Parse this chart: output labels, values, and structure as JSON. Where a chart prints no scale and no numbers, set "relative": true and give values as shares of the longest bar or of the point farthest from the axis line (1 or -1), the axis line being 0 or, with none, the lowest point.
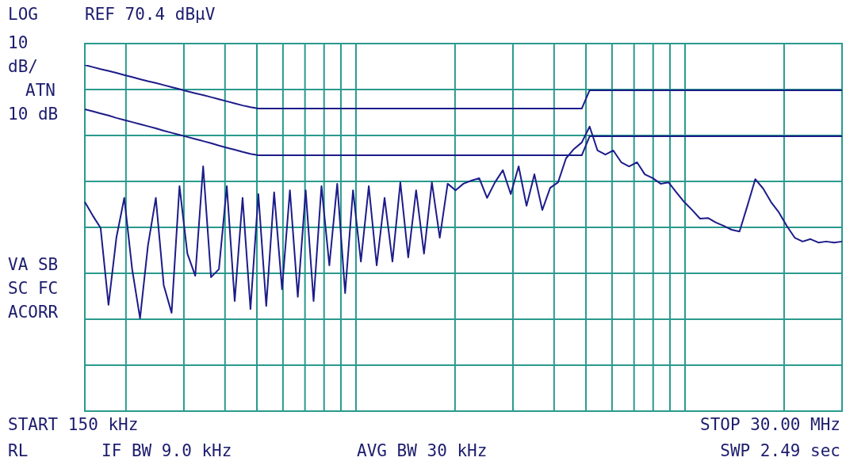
{
  "chart_data": {
    "type": "line",
    "relative": true,
    "grid": true,
    "legend": false,
    "categories": [
      null,
      null,
      null,
      null,
      null,
      null,
      null,
      null,
      null,
      null,
      null,
      null,
      null,
      null,
      null,
      null,
      null,
      null,
      null,
      null,
      null,
      null,
      null,
      null,
      null,
      null,
      null,
      null,
      null,
      null,
      null,
      null,
      null,
      null,
      null,
      null,
      null,
      null,
      null,
      null,
      null,
      null,
      null,
      null,
      null,
      null,
      null,
      null,
      null,
      null,
      null,
      null,
      null,
      null,
      null,
      null,
      null,
      null,
      null,
      null,
      null,
      null,
      null,
      null,
      null,
      null,
      null,
      null,
      null,
      null,
      null,
      null,
      null,
      null,
      null,
      null,
      null,
      null,
      null,
      null,
      null,
      null,
      null,
      null,
      null,
      null,
      null,
      null,
      null,
      null,
      null,
      null,
      null,
      null,
      null,
      null,
      null
    ],
    "annotations": [
      "LOG",
      "REF 70.4 dBµV",
      "10",
      "dB/",
      "ATN",
      "10 dB",
      "VA SB",
      "SC FC",
      "ACORR",
      "START 150 kHz",
      "STOP 30.00 MHz",
      "RL",
      "IF BW 9.0 kHz",
      "AVG BW 30 kHz",
      "SWP 2.49 sec"
    ],
    "series": [
      {
        "color": "#1c1c8a",
        "values": [
          1.0,
          0.994,
          0.988,
          0.983,
          0.977,
          0.971,
          0.965,
          0.959,
          0.953,
          0.948,
          0.942,
          0.936,
          0.93,
          0.924,
          0.918,
          0.913,
          0.907,
          0.901,
          0.895,
          0.889,
          0.883,
          0.878,
          0.874,
          0.874,
          0.874,
          0.874,
          0.874,
          0.874,
          0.874,
          0.874,
          0.874,
          0.874,
          0.874,
          0.874,
          0.874,
          0.874,
          0.874,
          0.874,
          0.874,
          0.874,
          0.874,
          0.874,
          0.874,
          0.874,
          0.874,
          0.874,
          0.874,
          0.874,
          0.874,
          0.874,
          0.874,
          0.874,
          0.874,
          0.874,
          0.874,
          0.874,
          0.874,
          0.874,
          0.874,
          0.874,
          0.874,
          0.874,
          0.874,
          0.874,
          0.927,
          0.927,
          0.927,
          0.927,
          0.927,
          0.927,
          0.927,
          0.927,
          0.927,
          0.927,
          0.927,
          0.927,
          0.927,
          0.927,
          0.927,
          0.927,
          0.927,
          0.927,
          0.927,
          0.927,
          0.927,
          0.927,
          0.927,
          0.927,
          0.927,
          0.927,
          0.927,
          0.927,
          0.927,
          0.927,
          0.927,
          0.927,
          0.927
        ]
      },
      {
        "color": "#1c1c8a",
        "values": [
          0.872,
          0.866,
          0.86,
          0.854,
          0.847,
          0.841,
          0.835,
          0.829,
          0.823,
          0.817,
          0.81,
          0.804,
          0.798,
          0.792,
          0.786,
          0.78,
          0.774,
          0.767,
          0.761,
          0.755,
          0.749,
          0.743,
          0.739,
          0.739,
          0.739,
          0.739,
          0.739,
          0.739,
          0.739,
          0.739,
          0.739,
          0.739,
          0.739,
          0.739,
          0.739,
          0.739,
          0.739,
          0.739,
          0.739,
          0.739,
          0.739,
          0.739,
          0.739,
          0.739,
          0.739,
          0.739,
          0.739,
          0.739,
          0.739,
          0.739,
          0.739,
          0.739,
          0.739,
          0.739,
          0.739,
          0.739,
          0.739,
          0.739,
          0.739,
          0.739,
          0.739,
          0.739,
          0.739,
          0.739,
          0.794,
          0.794,
          0.794,
          0.794,
          0.794,
          0.794,
          0.794,
          0.794,
          0.794,
          0.794,
          0.794,
          0.794,
          0.794,
          0.794,
          0.794,
          0.794,
          0.794,
          0.794,
          0.794,
          0.794,
          0.794,
          0.794,
          0.794,
          0.794,
          0.794,
          0.794,
          0.794,
          0.794,
          0.794,
          0.794,
          0.794,
          0.794,
          0.794
        ]
      },
      {
        "color": "#1c1c8a",
        "values": [
          0.604,
          0.565,
          0.529,
          0.307,
          0.501,
          0.616,
          0.41,
          0.268,
          0.478,
          0.616,
          0.364,
          0.284,
          0.65,
          0.455,
          0.391,
          0.707,
          0.387,
          0.41,
          0.65,
          0.318,
          0.616,
          0.295,
          0.627,
          0.304,
          0.632,
          0.352,
          0.638,
          0.33,
          0.638,
          0.318,
          0.65,
          0.421,
          0.657,
          0.341,
          0.638,
          0.432,
          0.65,
          0.421,
          0.616,
          0.432,
          0.661,
          0.444,
          0.638,
          0.455,
          0.661,
          0.501,
          0.657,
          0.638,
          0.657,
          0.666,
          0.673,
          0.616,
          0.661,
          0.696,
          0.627,
          0.707,
          0.593,
          0.684,
          0.581,
          0.645,
          0.661,
          0.73,
          0.757,
          0.776,
          0.822,
          0.753,
          0.741,
          0.753,
          0.719,
          0.707,
          0.719,
          0.684,
          0.673,
          0.657,
          0.661,
          0.632,
          0.604,
          0.581,
          0.556,
          0.558,
          0.545,
          0.535,
          0.524,
          0.519,
          0.593,
          0.67,
          0.643,
          0.604,
          0.574,
          0.535,
          0.501,
          0.49,
          0.497,
          0.487,
          0.49,
          0.487,
          0.49
        ]
      }
    ]
  }
}
